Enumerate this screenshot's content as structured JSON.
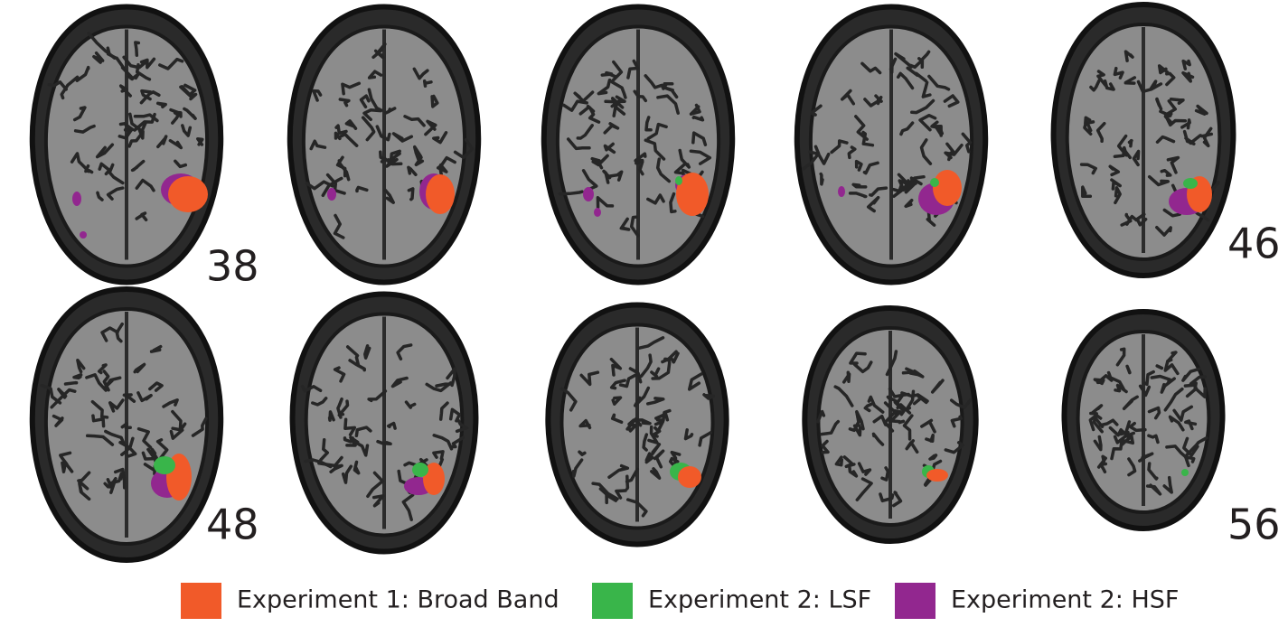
{
  "slice_labels": [
    "38",
    "46",
    "48",
    "56"
  ],
  "legend": [
    {
      "label": "Experiment 1: Broad Band",
      "color": "#f15a29"
    },
    {
      "label": "Experiment 2: LSF",
      "color": "#39b54a"
    },
    {
      "label": "Experiment 2: HSF",
      "color": "#92278f"
    }
  ]
}
